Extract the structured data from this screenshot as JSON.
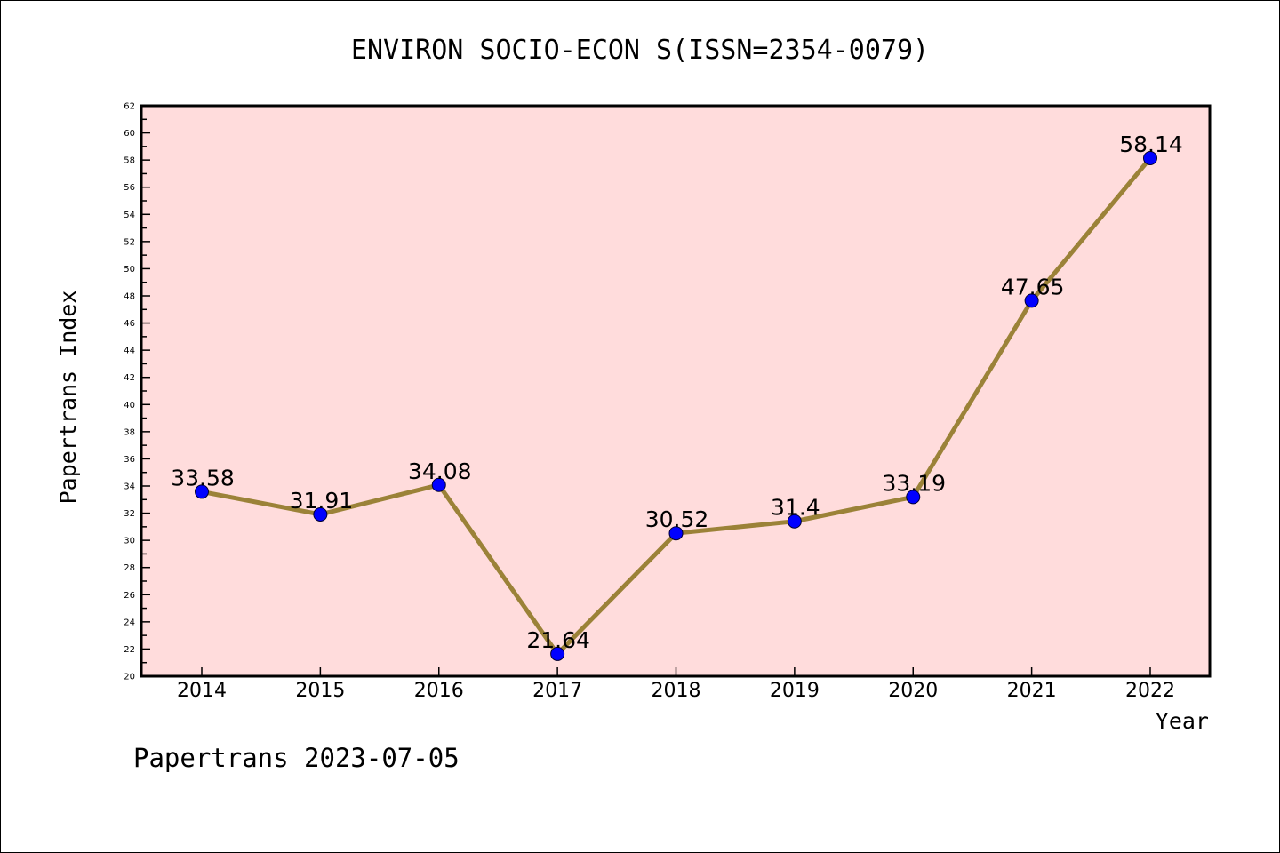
{
  "chart_data": {
    "type": "line",
    "title": "ENVIRON SOCIO-ECON S(ISSN=2354-0079)",
    "xlabel": "Year",
    "ylabel": "Papertrans Index",
    "footer": "Papertrans 2023-07-05",
    "categories": [
      "2014",
      "2015",
      "2016",
      "2017",
      "2018",
      "2019",
      "2020",
      "2021",
      "2022"
    ],
    "values": [
      33.58,
      31.91,
      34.08,
      21.64,
      30.52,
      31.4,
      33.19,
      47.65,
      58.14
    ],
    "value_labels": [
      "33.58",
      "31.91",
      "34.08",
      "21.64",
      "30.52",
      "31.4",
      "33.19",
      "47.65",
      "58.14"
    ],
    "ylim": [
      20,
      62
    ],
    "ytick_step": 2,
    "grid": false,
    "colors": {
      "plot_background": "#ffdcdc",
      "line": "#9b8238",
      "marker": "#0000ff"
    }
  }
}
